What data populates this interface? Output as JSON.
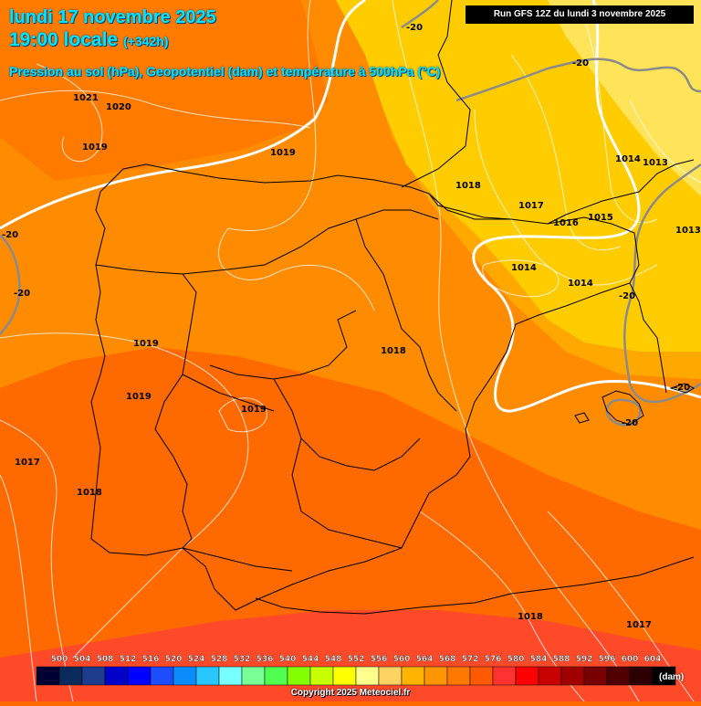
{
  "header": {
    "date": "lundi 17 novembre 2025",
    "local_time": "19:00 locale",
    "lead_time": "(+342h)",
    "parameter": "Pression au sol (hPa), Geopotentiel (dam) et température à 500hPa (°C)",
    "run": "Run GFS 12Z du lundi 3 novembre 2025"
  },
  "footer": {
    "copyright": "Copyright 2025 Meteociel.fr",
    "unit": "(dam)"
  },
  "legend": {
    "values": [
      500,
      504,
      508,
      512,
      516,
      520,
      524,
      528,
      532,
      536,
      540,
      544,
      548,
      552,
      556,
      560,
      564,
      568,
      572,
      576,
      580,
      584,
      588,
      592,
      596,
      600,
      604
    ],
    "colors": [
      "#000033",
      "#0a2a5c",
      "#1e3c8c",
      "#0000c8",
      "#0000ff",
      "#1e4cff",
      "#0a8cff",
      "#28c8ff",
      "#78ffff",
      "#78ff96",
      "#50ff50",
      "#82ff00",
      "#c8ff00",
      "#ffff00",
      "#ffff8c",
      "#ffd264",
      "#ffb400",
      "#ff9600",
      "#ff7800",
      "#ff5a00",
      "#ff3232",
      "#ff0000",
      "#c80000",
      "#a00000",
      "#780000",
      "#500000",
      "#2a0000",
      "#000000"
    ]
  },
  "pressure_labels": [
    {
      "text": "1021"
    },
    {
      "text": "1020"
    },
    {
      "text": "1019"
    },
    {
      "text": "1019"
    },
    {
      "text": "1019"
    },
    {
      "text": "1019"
    },
    {
      "text": "1019"
    },
    {
      "text": "1018"
    },
    {
      "text": "1018"
    },
    {
      "text": "1018"
    },
    {
      "text": "1017"
    },
    {
      "text": "1017"
    },
    {
      "text": "1016"
    },
    {
      "text": "1015"
    },
    {
      "text": "1014"
    },
    {
      "text": "1014"
    },
    {
      "text": "1014"
    },
    {
      "text": "1013"
    },
    {
      "text": "1013"
    },
    {
      "text": "1018"
    },
    {
      "text": "1017"
    }
  ],
  "temperature_labels": [
    {
      "text": "-20"
    },
    {
      "text": "-20"
    },
    {
      "text": "-20"
    },
    {
      "text": "-20"
    },
    {
      "text": "-20"
    },
    {
      "text": "-20"
    },
    {
      "text": "-20"
    }
  ]
}
